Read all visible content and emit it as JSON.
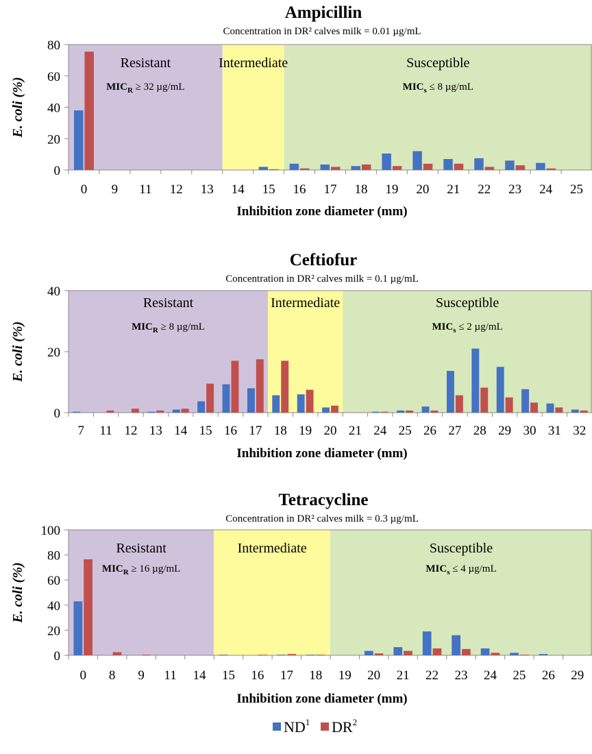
{
  "chart_data": [
    {
      "type": "bar",
      "title": "Ampicillin",
      "subtitle": "Concentration in DR² calves milk = 0.01 µg/mL",
      "xlabel": "Inhibition zone diameter (mm)",
      "ylabel": "E. coli (%)",
      "ylim": [
        0,
        80
      ],
      "yticks": [
        0,
        20,
        40,
        60,
        80
      ],
      "categories": [
        "0",
        "9",
        "11",
        "12",
        "13",
        "14",
        "15",
        "16",
        "17",
        "18",
        "19",
        "20",
        "21",
        "22",
        "23",
        "24",
        "25"
      ],
      "series": [
        {
          "name": "ND¹",
          "values": [
            38,
            0,
            0,
            0,
            0,
            0,
            2,
            4,
            3.5,
            2.5,
            10.5,
            12,
            7,
            7.5,
            6,
            4.5,
            0
          ]
        },
        {
          "name": "DR²",
          "values": [
            75.5,
            0,
            0,
            0,
            0,
            0,
            0.5,
            1,
            2,
            3.5,
            2.5,
            4,
            4,
            2,
            3,
            1,
            0
          ]
        }
      ],
      "zones": [
        {
          "label": "Resistant",
          "mic": "≥ 32 µg/mL",
          "mic_prefix": "MIC",
          "mic_sub": "R",
          "color": "#cfc3dc",
          "from": 0,
          "to": 5
        },
        {
          "label": "Intermediate",
          "color": "#fdfb9b",
          "from": 5,
          "to": 7
        },
        {
          "label": "Susceptible",
          "mic": "≤ 8 µg/mL",
          "mic_prefix": "MIC",
          "mic_sub": "s",
          "color": "#d7e8bc",
          "from": 7,
          "to": 17
        }
      ]
    },
    {
      "type": "bar",
      "title": "Ceftiofur",
      "subtitle": "Concentration in DR² calves milk = 0.1 µg/mL",
      "xlabel": "Inhibition zone diameter (mm)",
      "ylabel": "E. coli (%)",
      "ylim": [
        0,
        40
      ],
      "yticks": [
        0,
        20,
        40
      ],
      "categories": [
        "7",
        "11",
        "12",
        "13",
        "14",
        "15",
        "16",
        "17",
        "18",
        "19",
        "20",
        "21",
        "24",
        "25",
        "26",
        "27",
        "28",
        "29",
        "30",
        "31",
        "32"
      ],
      "series": [
        {
          "name": "ND¹",
          "values": [
            0.3,
            0,
            0,
            0.3,
            1,
            3.7,
            9.3,
            8,
            5.7,
            6,
            1.7,
            0,
            0.3,
            0.7,
            2,
            13.7,
            21,
            15,
            7.7,
            3,
            1
          ]
        },
        {
          "name": "DR²",
          "values": [
            0,
            0.7,
            1.3,
            0.7,
            1.3,
            9.5,
            17,
            17.5,
            17,
            7.5,
            2.3,
            0,
            0.3,
            0.7,
            0.7,
            5.7,
            8.2,
            5,
            3.3,
            1.7,
            0.7
          ]
        }
      ],
      "zones": [
        {
          "label": "Resistant",
          "mic": "≥ 8 µg/mL",
          "mic_prefix": "MIC",
          "mic_sub": "R",
          "color": "#cfc3dc",
          "from": 0,
          "to": 8
        },
        {
          "label": "Intermediate",
          "color": "#fdfb9b",
          "from": 8,
          "to": 11
        },
        {
          "label": "Susceptible",
          "mic": "≤ 2 µg/mL",
          "mic_prefix": "MIC",
          "mic_sub": "s",
          "color": "#d7e8bc",
          "from": 11,
          "to": 21
        }
      ]
    },
    {
      "type": "bar",
      "title": "Tetracycline",
      "subtitle": "Concentration in DR² calves milk = 0.3 µg/mL",
      "xlabel": "Inhibition zone diameter (mm)",
      "ylabel": "E. coli (%)",
      "ylim": [
        0,
        100
      ],
      "yticks": [
        0,
        20,
        40,
        60,
        80,
        100
      ],
      "categories": [
        "0",
        "8",
        "9",
        "11",
        "14",
        "15",
        "16",
        "17",
        "18",
        "19",
        "20",
        "21",
        "22",
        "23",
        "24",
        "25",
        "26",
        "29"
      ],
      "series": [
        {
          "name": "ND¹",
          "values": [
            43,
            0,
            0,
            0,
            0,
            0.5,
            0,
            0.5,
            0.5,
            0,
            3.5,
            6.5,
            19,
            16,
            5.5,
            2,
            1,
            0
          ]
        },
        {
          "name": "DR²",
          "values": [
            76.5,
            2.5,
            0.5,
            0,
            0,
            0,
            0.5,
            1,
            0.5,
            0,
            1.5,
            3.5,
            5.5,
            5,
            2,
            0.5,
            0,
            0
          ]
        }
      ],
      "zones": [
        {
          "label": "Resistant",
          "mic": "≥ 16 µg/mL",
          "mic_prefix": "MIC",
          "mic_sub": "R",
          "color": "#cfc3dc",
          "from": 0,
          "to": 5
        },
        {
          "label": "Intermediate",
          "color": "#fdfb9b",
          "from": 5,
          "to": 9
        },
        {
          "label": "Susceptible",
          "mic": "≤ 4 µg/mL",
          "mic_prefix": "MIC",
          "mic_sub": "s",
          "color": "#d7e8bc",
          "from": 9,
          "to": 18
        }
      ]
    }
  ],
  "legend": {
    "items": [
      {
        "label": "ND",
        "sup": "1",
        "color": "#4472c4"
      },
      {
        "label": "DR",
        "sup": "2",
        "color": "#c0504d"
      }
    ]
  }
}
